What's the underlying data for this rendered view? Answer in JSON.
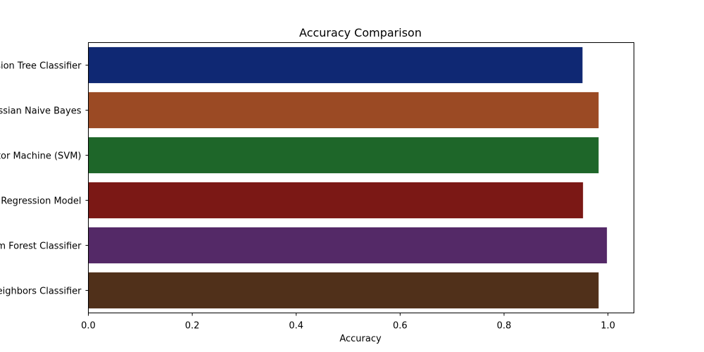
{
  "chart_data": {
    "type": "bar",
    "orientation": "horizontal",
    "title": "Accuracy Comparison",
    "xlabel": "Accuracy",
    "ylabel": "",
    "xlim": [
      0,
      1.05
    ],
    "xticks": [
      "0.0",
      "0.2",
      "0.4",
      "0.6",
      "0.8",
      "1.0"
    ],
    "grid": false,
    "categories": [
      "Decision Tree Classifier",
      "Gaussian Naive Bayes",
      "Support Vector Machine (SVM)",
      "Logistic Regression Model ",
      "Random Forest Classifier",
      "K-Nearest Neighbors Classifier"
    ],
    "values": [
      0.951,
      0.982,
      0.982,
      0.952,
      0.998,
      0.982
    ],
    "colors": [
      "#0f2873",
      "#9b4a24",
      "#1e6629",
      "#7b1815",
      "#542967",
      "#50301a"
    ]
  }
}
